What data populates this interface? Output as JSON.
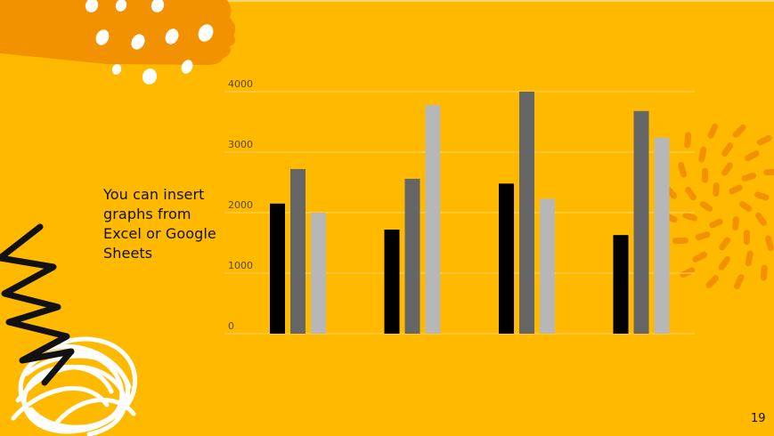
{
  "slide": {
    "text_lines": [
      "You can insert",
      "graphs from",
      "Excel or Google",
      "Sheets"
    ],
    "page_number": "19",
    "colors": {
      "background": "#FFBA00",
      "accent_orange": "#F39200",
      "gridline": "#FFD766",
      "tick_label": "#5a4a10"
    }
  },
  "chart_data": {
    "type": "bar",
    "title": "",
    "xlabel": "",
    "ylabel": "",
    "categories": [
      "",
      "",
      "",
      ""
    ],
    "ylim": [
      0,
      4000
    ],
    "yticks": [
      "0",
      "1000",
      "2000",
      "3000",
      "4000"
    ],
    "ytick_values": [
      0,
      1000,
      2000,
      3000,
      4000
    ],
    "grid": true,
    "legend": "none",
    "series": [
      {
        "color": "#000000",
        "values": [
          2150,
          1720,
          2480,
          1630
        ]
      },
      {
        "color": "#666666",
        "values": [
          2720,
          2560,
          4000,
          3680
        ]
      },
      {
        "color": "#B7B7B7",
        "values": [
          2000,
          3780,
          2230,
          3240
        ]
      }
    ]
  }
}
